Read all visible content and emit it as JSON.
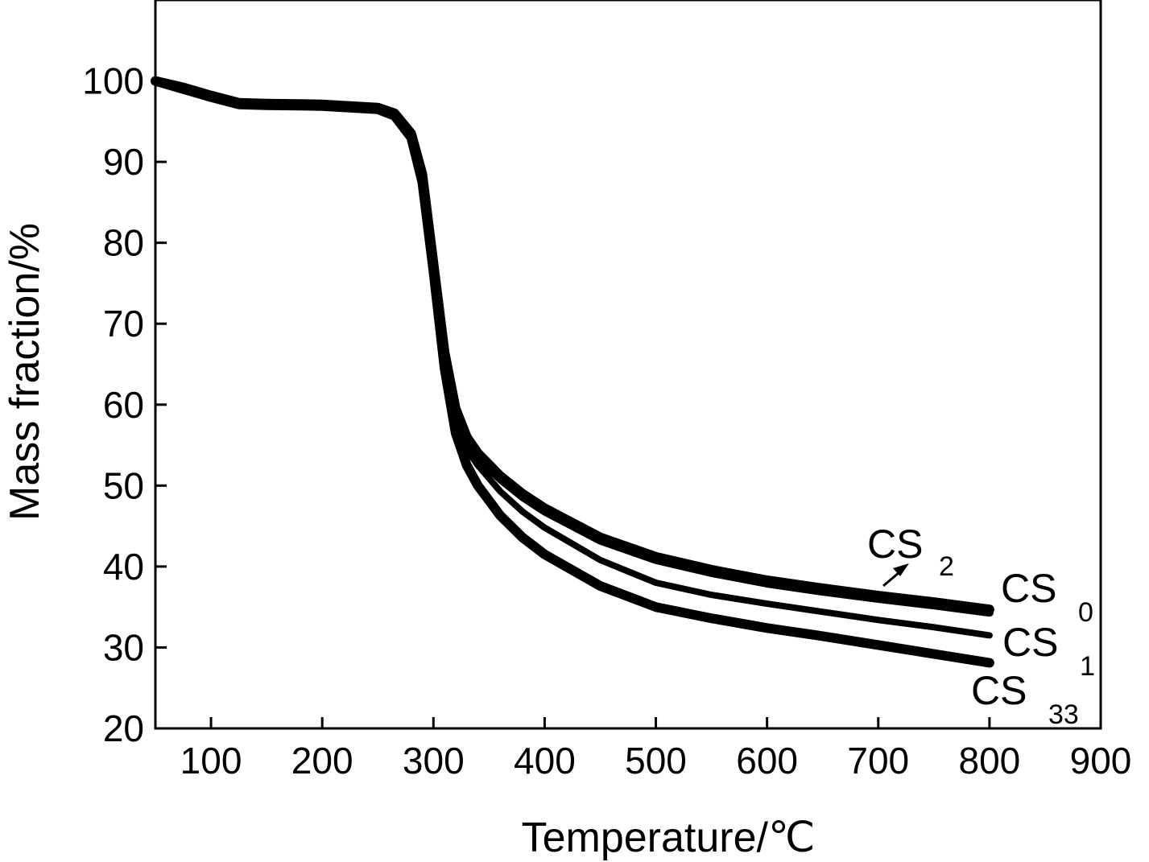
{
  "chart_data": {
    "type": "line",
    "xlabel": "Temperature/℃",
    "ylabel": "Mass fraction/%",
    "xlim": [
      50,
      900
    ],
    "ylim": [
      20,
      110
    ],
    "xticks": [
      100,
      200,
      300,
      400,
      500,
      600,
      700,
      800,
      900
    ],
    "yticks": [
      20,
      30,
      40,
      50,
      60,
      70,
      80,
      90,
      100
    ],
    "grid": false,
    "legend": "none",
    "annotations": [
      {
        "label": "CS",
        "subscript": "2",
        "arrow_to_series": "CS2"
      }
    ],
    "series": [
      {
        "name": "CS0",
        "label": "CS",
        "subscript": "0",
        "x": [
          50,
          75,
          100,
          125,
          150,
          200,
          250,
          265,
          280,
          290,
          300,
          310,
          320,
          330,
          340,
          360,
          380,
          400,
          450,
          500,
          550,
          600,
          650,
          700,
          750,
          800
        ],
        "y": [
          100,
          99.2,
          98.2,
          97.3,
          97.2,
          97.1,
          96.7,
          96.0,
          93.5,
          88.5,
          77.5,
          66.5,
          59.5,
          56.0,
          54.0,
          51.2,
          49.0,
          47.2,
          43.6,
          41.2,
          39.6,
          38.3,
          37.3,
          36.4,
          35.6,
          34.7
        ]
      },
      {
        "name": "CS2",
        "label": "CS",
        "subscript": "2",
        "x": [
          50,
          75,
          100,
          125,
          150,
          200,
          250,
          265,
          280,
          290,
          300,
          310,
          320,
          330,
          340,
          360,
          380,
          400,
          450,
          500,
          550,
          600,
          650,
          700,
          750,
          800
        ],
        "y": [
          100,
          99.1,
          98.1,
          97.2,
          97.1,
          97.0,
          96.6,
          95.8,
          93.2,
          88.0,
          77.0,
          66.0,
          59.0,
          55.5,
          53.5,
          50.8,
          48.6,
          46.8,
          43.2,
          40.8,
          39.2,
          37.9,
          36.9,
          36.0,
          35.2,
          34.3
        ]
      },
      {
        "name": "CS1",
        "label": "CS",
        "subscript": "1",
        "x": [
          50,
          75,
          100,
          125,
          150,
          200,
          250,
          265,
          280,
          290,
          300,
          310,
          320,
          330,
          340,
          360,
          380,
          400,
          450,
          500,
          550,
          600,
          650,
          700,
          750,
          800
        ],
        "y": [
          100,
          99.1,
          98.1,
          97.2,
          97.1,
          97.0,
          96.6,
          95.8,
          93.2,
          88.0,
          77.0,
          65.5,
          58.0,
          54.5,
          52.5,
          49.3,
          46.8,
          44.8,
          40.8,
          38.0,
          36.5,
          35.4,
          34.4,
          33.4,
          32.5,
          31.5
        ]
      },
      {
        "name": "CS33",
        "label": "CS",
        "subscript": "33",
        "x": [
          50,
          75,
          100,
          125,
          150,
          200,
          250,
          265,
          280,
          290,
          300,
          310,
          320,
          330,
          340,
          360,
          380,
          400,
          450,
          500,
          550,
          600,
          650,
          700,
          750,
          800
        ],
        "y": [
          100,
          99.0,
          98.0,
          97.1,
          97.0,
          96.9,
          96.5,
          95.7,
          93.0,
          87.5,
          76.5,
          64.5,
          56.5,
          52.5,
          50.0,
          46.3,
          43.6,
          41.5,
          37.6,
          35.0,
          33.6,
          32.4,
          31.4,
          30.3,
          29.2,
          28.1
        ]
      }
    ]
  }
}
